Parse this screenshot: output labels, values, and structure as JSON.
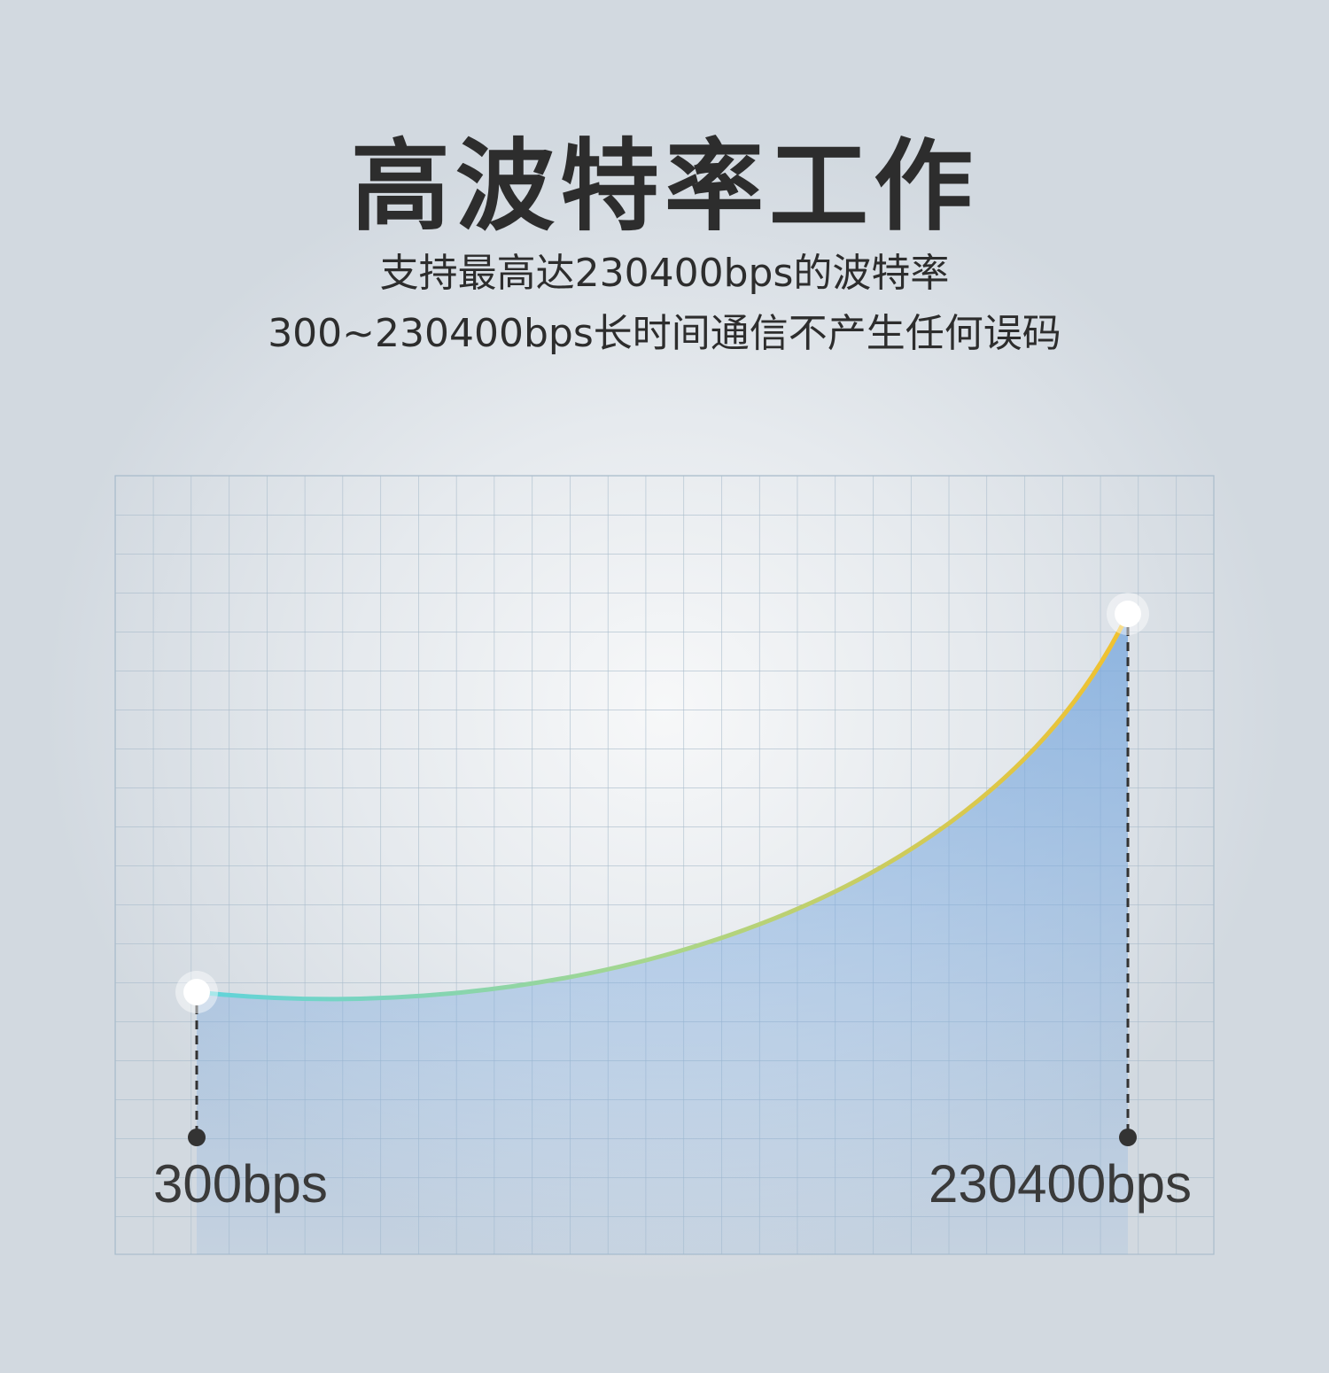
{
  "title": "高波特率工作",
  "subtitle_lines": [
    "支持最高达230400bps的波特率",
    "300~230400bps长时间通信不产生任何误码"
  ],
  "graph": {
    "start_label": "300bps",
    "end_label": "230400bps",
    "curve_colors": [
      "#5fd3dc",
      "#a8d68a",
      "#f2c12e"
    ],
    "fill_color": "#7aa9de"
  }
}
